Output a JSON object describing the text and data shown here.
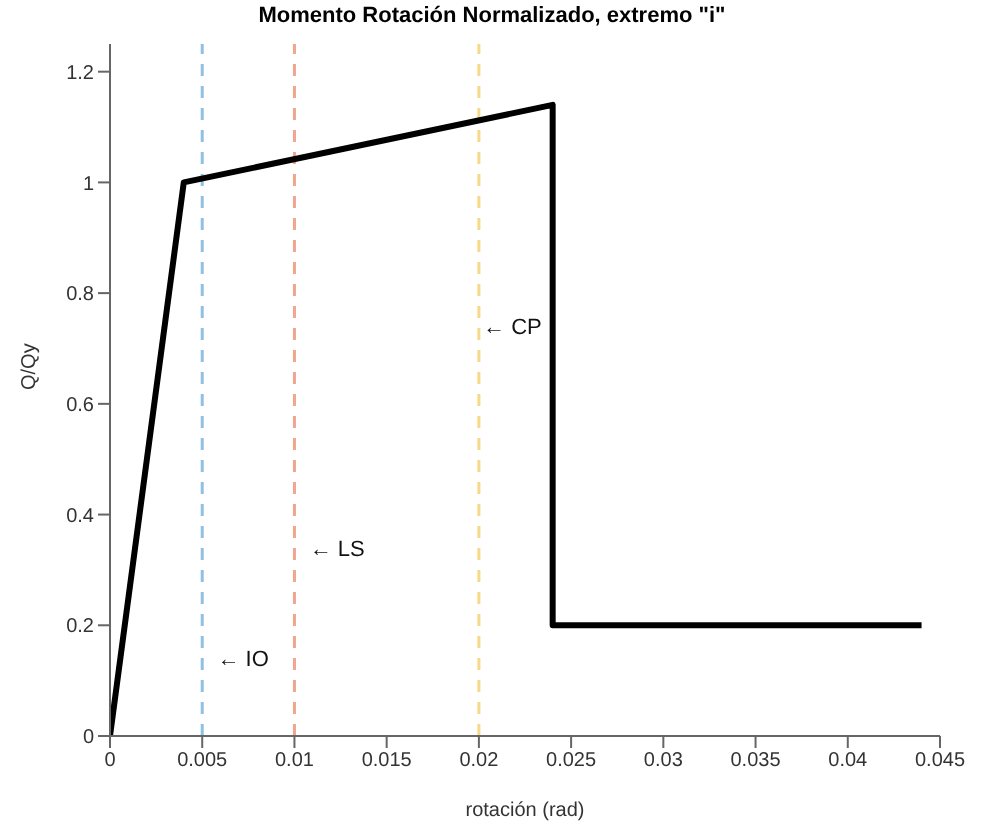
{
  "chart_data": {
    "type": "line",
    "title": "Momento Rotación Normalizado, extremo \"i\"",
    "xlabel": "rotación (rad)",
    "ylabel": "Q/Qy",
    "x": [
      0,
      0.004,
      0.024,
      0.024,
      0.044
    ],
    "series": [
      {
        "color": "#000000",
        "values": [
          0,
          1,
          1.14,
          0.2,
          0.2
        ]
      }
    ],
    "xlim": [
      0,
      0.045
    ],
    "xticks": [
      0,
      0.005,
      0.01,
      0.015,
      0.02,
      0.025,
      0.03,
      0.035,
      0.04,
      0.045
    ],
    "ylim": [
      0,
      1.25
    ],
    "yticks": [
      0,
      0.2,
      0.4,
      0.6,
      0.8,
      1,
      1.2
    ],
    "ref_lines": [
      {
        "axis": "x",
        "value": 0.005,
        "color": "#8fc1e3",
        "line_style": "dashed"
      },
      {
        "axis": "x",
        "value": 0.01,
        "color": "#f0a58e",
        "line_style": "dashed"
      },
      {
        "axis": "x",
        "value": 0.02,
        "color": "#f7d98b",
        "line_style": "dashed"
      }
    ],
    "annotations": [
      {
        "text": "← IO",
        "x": 0.0055,
        "y": 0.14
      },
      {
        "text": "← LS",
        "x": 0.0105,
        "y": 0.34
      },
      {
        "text": "← CP",
        "x": 0.0199,
        "y": 0.74
      }
    ],
    "grid": false,
    "legend": false,
    "marker": "none",
    "line_style": "solid"
  }
}
